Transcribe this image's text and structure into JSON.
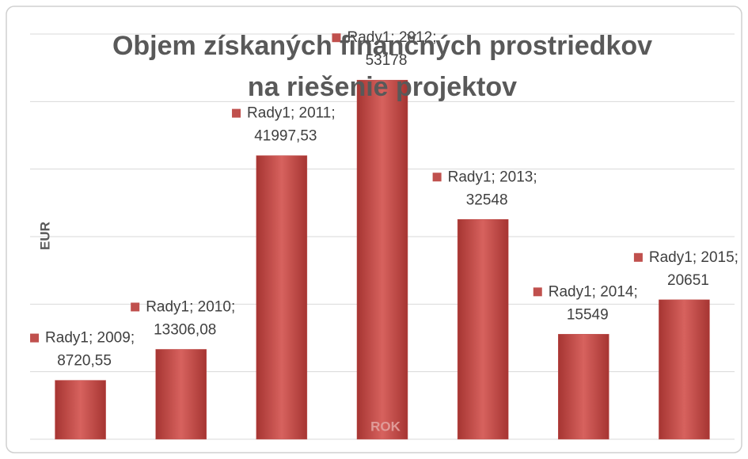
{
  "chart_data": {
    "type": "bar",
    "title": [
      "Objem získaných finančných prostriedkov",
      "na riešenie projektov"
    ],
    "y_label": "EUR",
    "x_label": "ROK",
    "categories": [
      "2009",
      "2010",
      "2011",
      "2012",
      "2013",
      "2014",
      "2015"
    ],
    "series": [
      {
        "name": "Rady1",
        "color": "#c0504d",
        "values": [
          8720.55,
          13306.08,
          41997.53,
          53178,
          32548,
          15549,
          20651
        ],
        "value_labels": [
          "8720,55",
          "13306,08",
          "41997,53",
          "53178",
          "32548",
          "15549",
          "20651"
        ]
      }
    ],
    "ylim": [
      0,
      60000
    ],
    "yticks": [
      0,
      10000,
      20000,
      30000,
      40000,
      50000,
      60000
    ],
    "grid": true
  }
}
